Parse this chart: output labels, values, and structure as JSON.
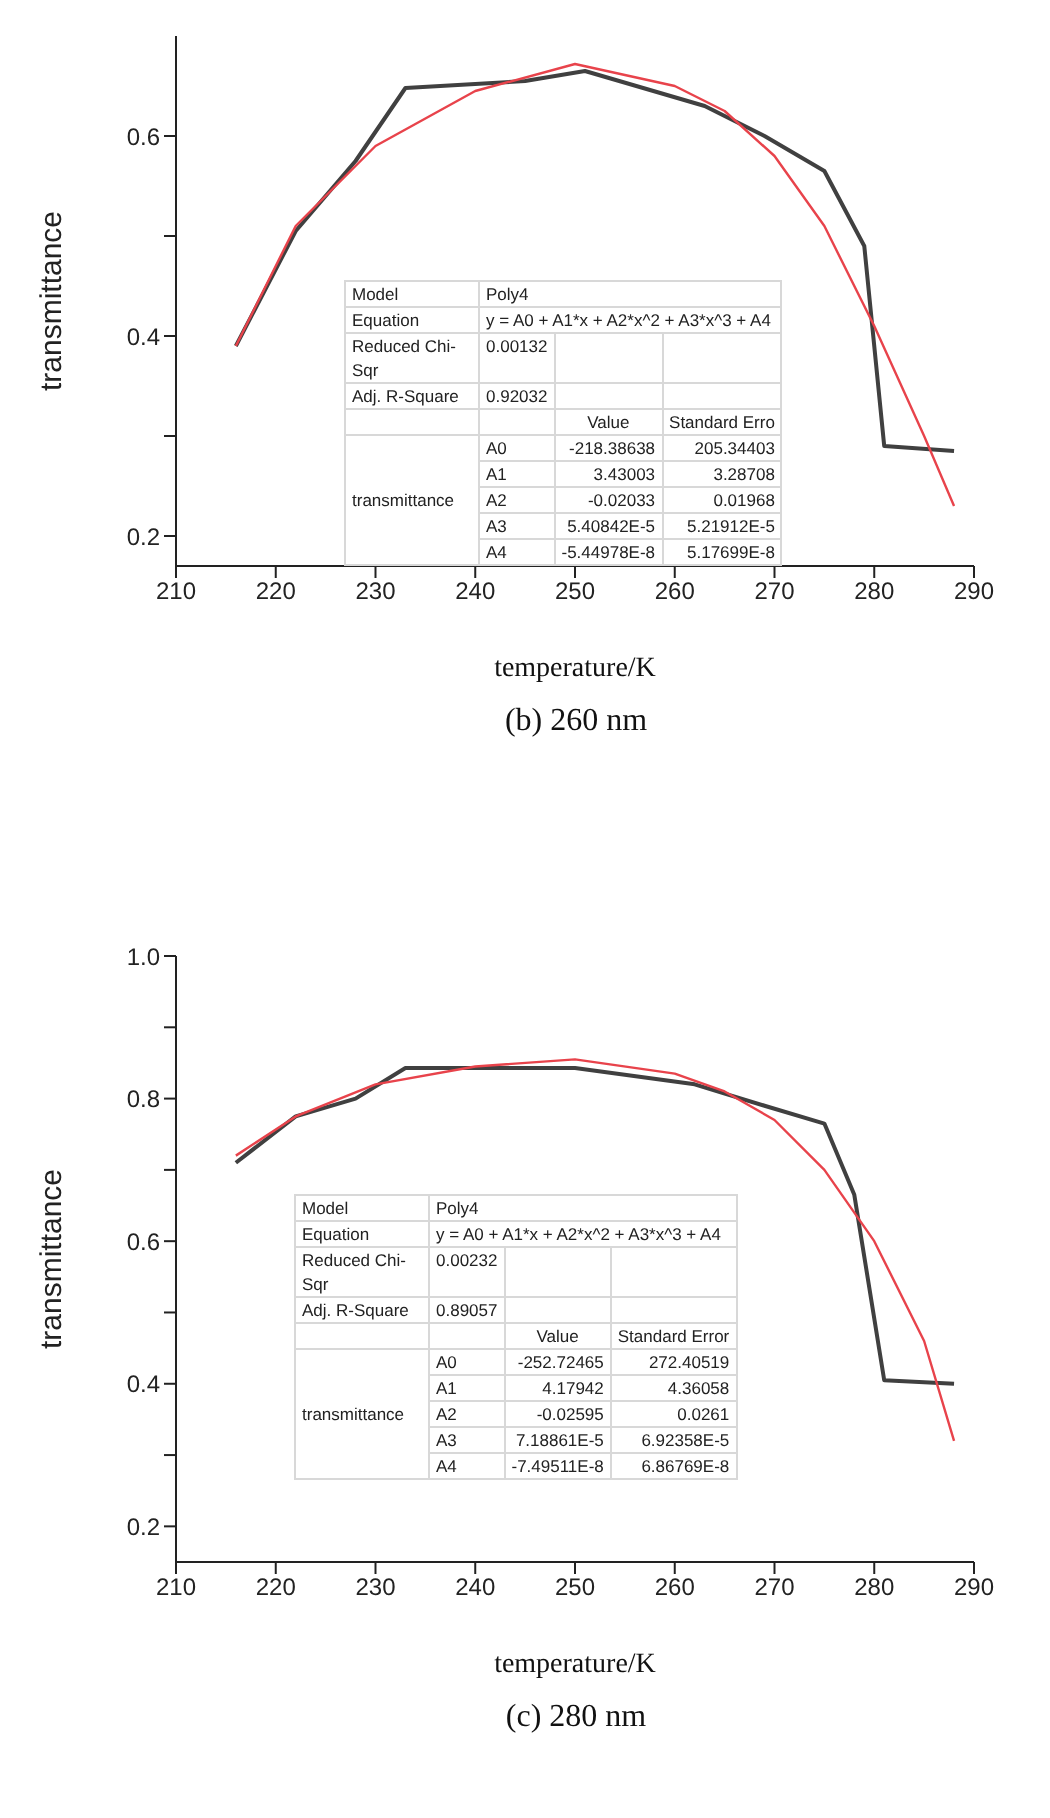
{
  "chart_data": [
    {
      "type": "line",
      "xlabel": "temperature/K",
      "ylabel": "transmittance",
      "xlim": [
        210,
        290
      ],
      "xticks": [
        210,
        220,
        230,
        240,
        250,
        260,
        270,
        280,
        290
      ],
      "ylim": [
        0.17,
        0.7
      ],
      "yticks": [
        0.2,
        {
          "value": 0.3,
          "label": null
        },
        0.4,
        {
          "value": 0.5,
          "label": null
        },
        0.6
      ],
      "grid": false,
      "legend": false,
      "marker": "none",
      "line_style": "solid",
      "series": [
        {
          "color": "#404040",
          "x": [
            216,
            222,
            228,
            233,
            245,
            251,
            263,
            269,
            275,
            279,
            281,
            288
          ],
          "values": [
            0.39,
            0.505,
            0.575,
            0.648,
            0.655,
            0.665,
            0.63,
            0.6,
            0.565,
            0.49,
            0.29,
            0.285
          ]
        },
        {
          "color": "#e8434b",
          "x": [
            216,
            222,
            230,
            240,
            250,
            260,
            265,
            270,
            275,
            280,
            285,
            288
          ],
          "values": [
            0.39,
            0.51,
            0.59,
            0.645,
            0.672,
            0.65,
            0.625,
            0.58,
            0.51,
            0.41,
            0.3,
            0.23
          ]
        }
      ],
      "annotations": [
        "(b) 260 nm",
        "Model",
        "Poly4",
        "Equation",
        "y = A0 + A1*x + A2*x^2 + A3*x^3 + A4",
        "Reduced Chi-Sqr",
        "0.00132",
        "Adj. R-Square",
        "0.92032",
        "Value",
        "Standard Erro",
        "transmittance",
        "A0",
        "-218.38638",
        "205.34403",
        "A1",
        "3.43003",
        "3.28708",
        "A2",
        "-0.02033",
        "0.01968",
        "A3",
        "5.40842E-5",
        "5.21912E-5",
        "A4",
        "-5.44978E-8",
        "5.17699E-8"
      ]
    },
    {
      "type": "line",
      "xlabel": "temperature/K",
      "ylabel": "transmittance",
      "xlim": [
        210,
        290
      ],
      "xticks": [
        210,
        220,
        230,
        240,
        250,
        260,
        270,
        280,
        290
      ],
      "ylim": [
        0.15,
        1.0
      ],
      "yticks": [
        0.2,
        {
          "value": 0.3,
          "label": null
        },
        0.4,
        {
          "value": 0.5,
          "label": null
        },
        0.6,
        {
          "value": 0.7,
          "label": null
        },
        0.8,
        {
          "value": 0.9,
          "label": null
        },
        {
          "value": 1.0,
          "label": "1.0"
        }
      ],
      "grid": false,
      "legend": false,
      "marker": "none",
      "line_style": "solid",
      "series": [
        {
          "color": "#404040",
          "x": [
            216,
            222,
            228,
            233,
            250,
            262,
            269,
            275,
            278,
            281,
            288
          ],
          "values": [
            0.71,
            0.775,
            0.8,
            0.843,
            0.843,
            0.82,
            0.79,
            0.765,
            0.665,
            0.405,
            0.4
          ]
        },
        {
          "color": "#e8434b",
          "x": [
            216,
            222,
            230,
            240,
            250,
            260,
            265,
            270,
            275,
            280,
            285,
            288
          ],
          "values": [
            0.72,
            0.775,
            0.82,
            0.845,
            0.855,
            0.835,
            0.81,
            0.77,
            0.7,
            0.6,
            0.46,
            0.32
          ]
        }
      ],
      "annotations": [
        "(c) 280 nm",
        "Model",
        "Poly4",
        "Equation",
        "y = A0 + A1*x + A2*x^2 + A3*x^3 + A4",
        "Reduced Chi-Sqr",
        "0.00232",
        "Adj. R-Square",
        "0.89057",
        "Value",
        "Standard Error",
        "transmittance",
        "A0",
        "-252.72465",
        "272.40519",
        "A1",
        "4.17942",
        "4.36058",
        "A2",
        "-0.02595",
        "0.0261",
        "A3",
        "7.18861E-5",
        "6.92358E-5",
        "A4",
        "-7.49511E-8",
        "6.86769E-8"
      ]
    }
  ]
}
